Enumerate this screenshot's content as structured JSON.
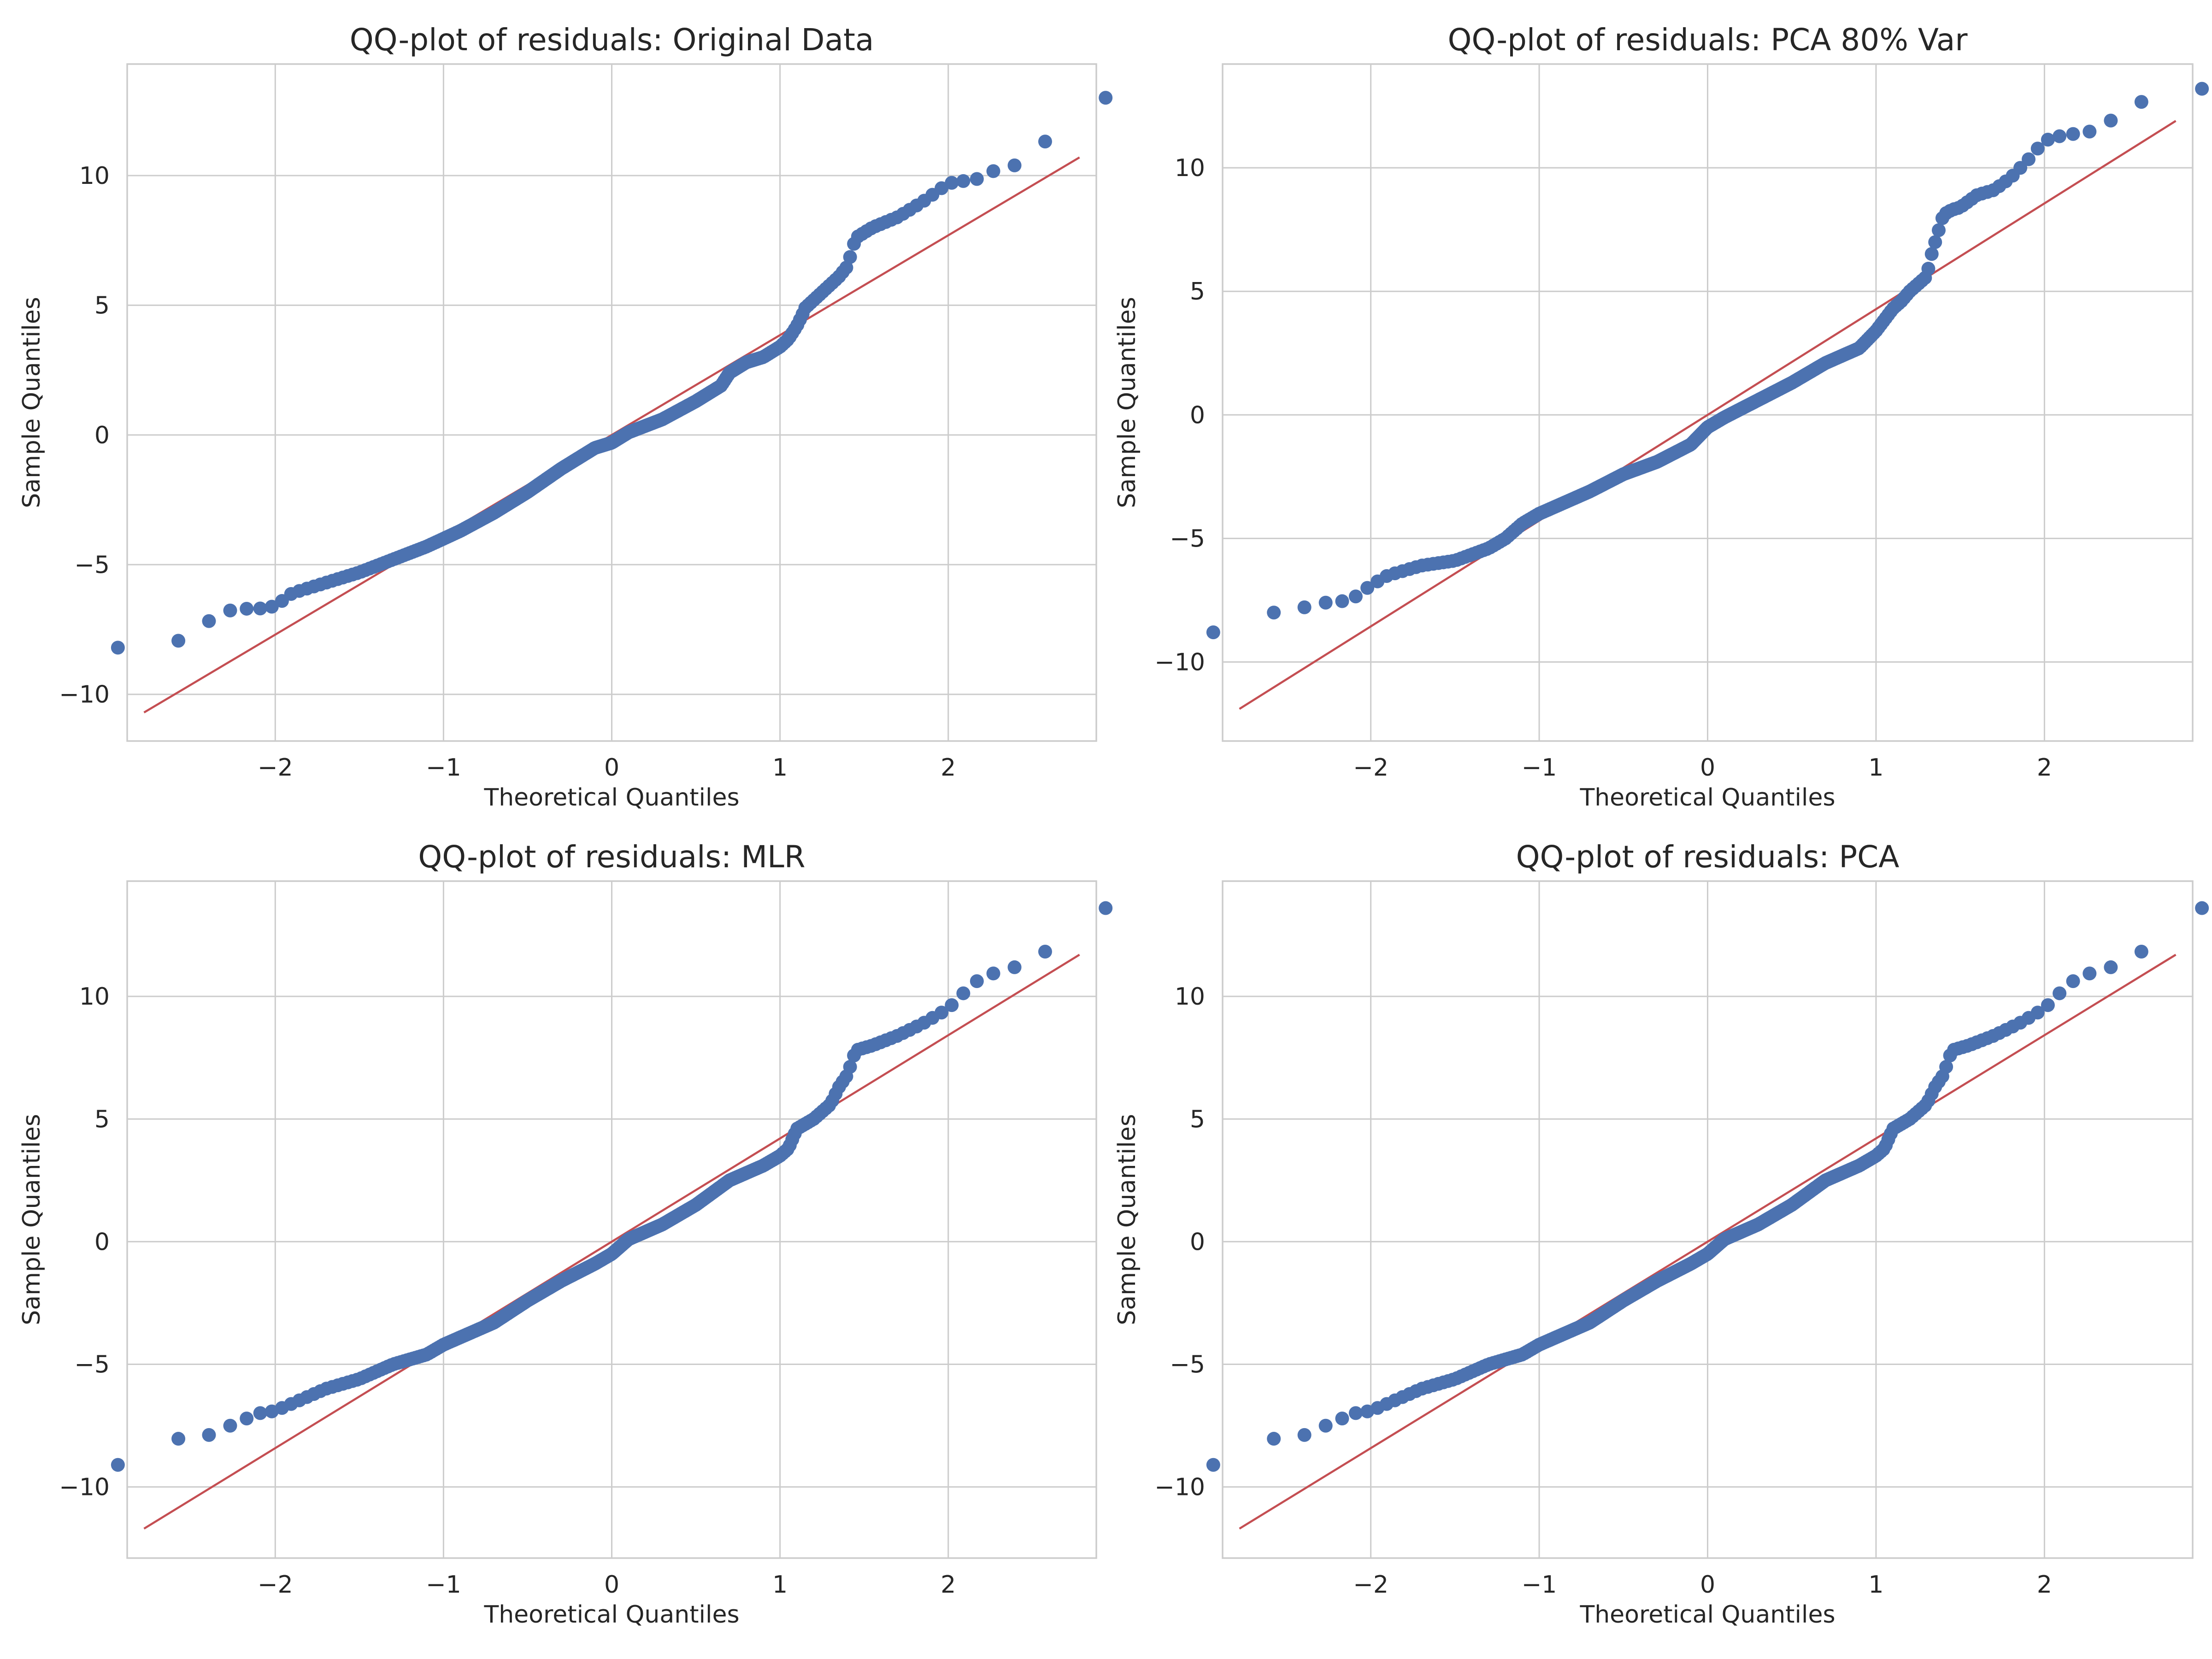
{
  "colors": {
    "points": "#4c72b0",
    "fit_line": "#c44e52",
    "grid": "#cccccc",
    "spine": "#cccccc",
    "text": "#262626",
    "background": "#ffffff"
  },
  "chart_data": [
    {
      "type": "scatter",
      "title": "QQ-plot of residuals: Original Data",
      "xlabel": "Theoretical Quantiles",
      "ylabel": "Sample Quantiles",
      "xlim": [
        -2.88,
        2.88
      ],
      "ylim": [
        -11.8,
        14.3
      ],
      "xticks": [
        -2,
        -1,
        0,
        1,
        2
      ],
      "yticks": [
        -10,
        -5,
        0,
        5,
        10
      ],
      "grid": true,
      "legend": "none",
      "reference_line": {
        "x": [
          -2.78,
          2.78
        ],
        "y": [
          -10.7,
          10.7
        ]
      },
      "quantile_curve": {
        "x": [
          -2.78,
          -2.55,
          -2.4,
          -2.3,
          -2.2,
          -2.1,
          -2.0,
          -1.9,
          -1.7,
          -1.5,
          -1.3,
          -1.1,
          -1.0,
          -0.9,
          -0.7,
          -0.5,
          -0.3,
          -0.1,
          0.0,
          0.1,
          0.3,
          0.5,
          0.6,
          0.65,
          0.7,
          0.75,
          0.8,
          0.9,
          1.0,
          1.05,
          1.1,
          1.13,
          1.15,
          1.2,
          1.3,
          1.35,
          1.4,
          1.45,
          1.55,
          1.7,
          1.85,
          2.0,
          2.1,
          2.2,
          2.3,
          2.4,
          2.55,
          2.78
        ],
        "y": [
          -8.2,
          -7.9,
          -7.2,
          -6.8,
          -6.7,
          -6.7,
          -6.6,
          -6.1,
          -5.7,
          -5.3,
          -4.8,
          -4.3,
          -4.0,
          -3.7,
          -3.0,
          -2.2,
          -1.3,
          -0.5,
          -0.3,
          0.1,
          0.6,
          1.3,
          1.7,
          1.9,
          2.4,
          2.6,
          2.8,
          3.0,
          3.4,
          3.7,
          4.2,
          4.6,
          4.9,
          5.2,
          5.8,
          6.1,
          6.5,
          7.6,
          8.0,
          8.4,
          9.0,
          9.7,
          9.8,
          9.9,
          10.3,
          10.4,
          11.1,
          13.0
        ]
      },
      "point_count": 300
    },
    {
      "type": "scatter",
      "title": "QQ-plot of residuals: PCA 80% Var",
      "xlabel": "Theoretical Quantiles",
      "ylabel": "Sample Quantiles",
      "xlim": [
        -2.88,
        2.88
      ],
      "ylim": [
        -13.2,
        14.2
      ],
      "xticks": [
        -2,
        -1,
        0,
        1,
        2
      ],
      "yticks": [
        -10,
        -5,
        0,
        5,
        10
      ],
      "grid": true,
      "legend": "none",
      "reference_line": {
        "x": [
          -2.78,
          2.78
        ],
        "y": [
          -11.9,
          11.9
        ]
      },
      "quantile_curve": {
        "x": [
          -2.78,
          -2.55,
          -2.4,
          -2.3,
          -2.2,
          -2.1,
          -2.0,
          -1.9,
          -1.7,
          -1.5,
          -1.3,
          -1.2,
          -1.1,
          -1.0,
          -0.9,
          -0.7,
          -0.5,
          -0.3,
          -0.1,
          0.0,
          0.1,
          0.3,
          0.5,
          0.7,
          0.9,
          1.0,
          1.1,
          1.15,
          1.2,
          1.25,
          1.3,
          1.33,
          1.36,
          1.4,
          1.45,
          1.5,
          1.6,
          1.7,
          1.8,
          1.9,
          2.0,
          2.1,
          2.2,
          2.3,
          2.55,
          2.78
        ],
        "y": [
          -8.8,
          -7.9,
          -7.8,
          -7.6,
          -7.6,
          -7.4,
          -6.9,
          -6.5,
          -6.1,
          -5.9,
          -5.4,
          -5.0,
          -4.4,
          -4.0,
          -3.7,
          -3.1,
          -2.4,
          -1.9,
          -1.2,
          -0.5,
          -0.1,
          0.6,
          1.3,
          2.1,
          2.7,
          3.4,
          4.3,
          4.6,
          5.0,
          5.3,
          5.6,
          6.5,
          7.2,
          8.1,
          8.3,
          8.4,
          8.9,
          9.1,
          9.6,
          10.3,
          11.1,
          11.3,
          11.4,
          11.5,
          12.6,
          13.2
        ]
      },
      "point_count": 300
    },
    {
      "type": "scatter",
      "title": "QQ-plot of residuals: MLR",
      "xlabel": "Theoretical Quantiles",
      "ylabel": "Sample Quantiles",
      "xlim": [
        -2.88,
        2.88
      ],
      "ylim": [
        -12.9,
        14.7
      ],
      "xticks": [
        -2,
        -1,
        0,
        1,
        2
      ],
      "yticks": [
        -10,
        -5,
        0,
        5,
        10
      ],
      "grid": true,
      "legend": "none",
      "reference_line": {
        "x": [
          -2.78,
          2.78
        ],
        "y": [
          -11.7,
          11.7
        ]
      },
      "quantile_curve": {
        "x": [
          -2.78,
          -2.55,
          -2.4,
          -2.3,
          -2.2,
          -2.1,
          -2.0,
          -1.9,
          -1.7,
          -1.5,
          -1.3,
          -1.1,
          -1.0,
          -0.9,
          -0.7,
          -0.5,
          -0.3,
          -0.1,
          0.0,
          0.1,
          0.3,
          0.5,
          0.7,
          0.9,
          1.0,
          1.05,
          1.1,
          1.2,
          1.3,
          1.35,
          1.4,
          1.45,
          1.55,
          1.7,
          1.85,
          2.0,
          2.1,
          2.2,
          2.3,
          2.4,
          2.55,
          2.78
        ],
        "y": [
          -9.1,
          -7.9,
          -7.9,
          -7.6,
          -7.3,
          -7.0,
          -6.9,
          -6.6,
          -6.0,
          -5.6,
          -5.0,
          -4.6,
          -4.2,
          -3.9,
          -3.3,
          -2.4,
          -1.6,
          -0.9,
          -0.5,
          0.1,
          0.7,
          1.5,
          2.5,
          3.1,
          3.5,
          3.8,
          4.6,
          5.0,
          5.6,
          6.3,
          6.8,
          7.8,
          8.0,
          8.4,
          8.9,
          9.5,
          10.2,
          10.8,
          11.0,
          11.2,
          11.6,
          13.6
        ]
      },
      "point_count": 300
    },
    {
      "type": "scatter",
      "title": "QQ-plot of residuals: PCA",
      "xlabel": "Theoretical Quantiles",
      "ylabel": "Sample Quantiles",
      "xlim": [
        -2.88,
        2.88
      ],
      "ylim": [
        -12.9,
        14.7
      ],
      "xticks": [
        -2,
        -1,
        0,
        1,
        2
      ],
      "yticks": [
        -10,
        -5,
        0,
        5,
        10
      ],
      "grid": true,
      "legend": "none",
      "reference_line": {
        "x": [
          -2.78,
          2.78
        ],
        "y": [
          -11.7,
          11.7
        ]
      },
      "quantile_curve": {
        "x": [
          -2.78,
          -2.55,
          -2.4,
          -2.3,
          -2.2,
          -2.1,
          -2.0,
          -1.9,
          -1.7,
          -1.5,
          -1.3,
          -1.1,
          -1.0,
          -0.9,
          -0.7,
          -0.5,
          -0.3,
          -0.1,
          0.0,
          0.1,
          0.3,
          0.5,
          0.7,
          0.9,
          1.0,
          1.05,
          1.1,
          1.2,
          1.3,
          1.35,
          1.4,
          1.45,
          1.55,
          1.7,
          1.85,
          2.0,
          2.1,
          2.2,
          2.3,
          2.4,
          2.55,
          2.78
        ],
        "y": [
          -9.1,
          -7.9,
          -7.9,
          -7.6,
          -7.3,
          -7.0,
          -6.9,
          -6.6,
          -6.0,
          -5.6,
          -5.0,
          -4.6,
          -4.2,
          -3.9,
          -3.3,
          -2.4,
          -1.6,
          -0.9,
          -0.5,
          0.1,
          0.7,
          1.5,
          2.5,
          3.1,
          3.5,
          3.8,
          4.6,
          5.0,
          5.6,
          6.3,
          6.8,
          7.8,
          8.0,
          8.4,
          8.9,
          9.5,
          10.2,
          10.8,
          11.0,
          11.2,
          11.6,
          13.6
        ]
      },
      "point_count": 300
    }
  ]
}
